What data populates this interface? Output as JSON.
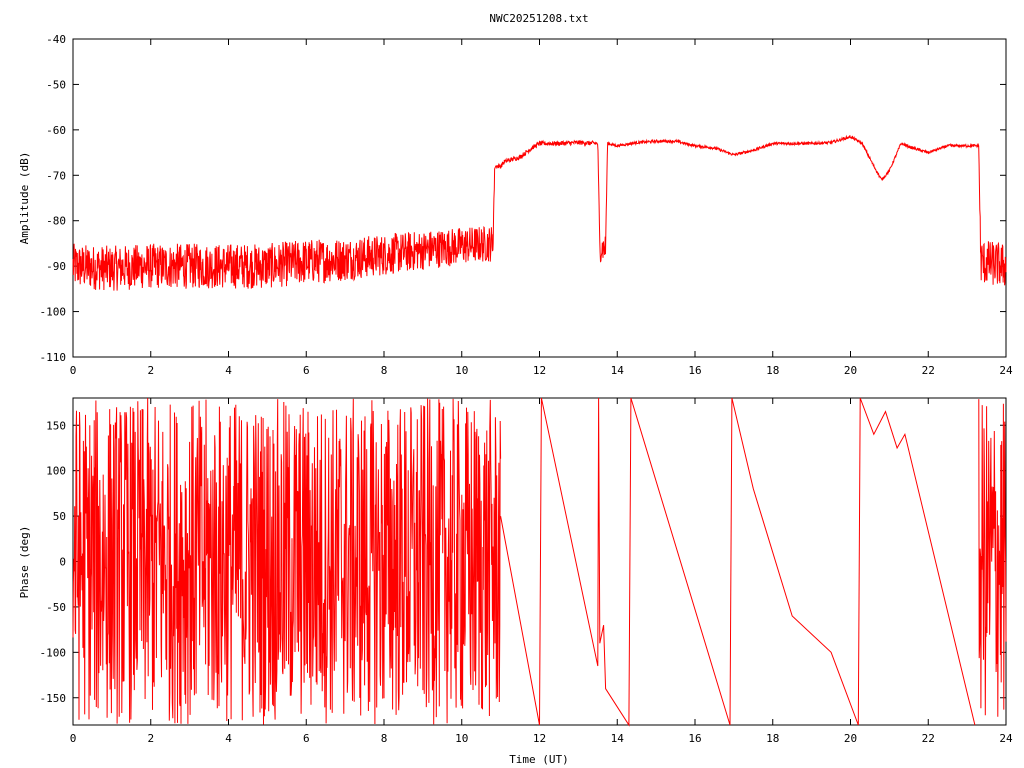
{
  "chart_data": [
    {
      "type": "line",
      "title": "NWC20251208.txt",
      "xlabel": "",
      "ylabel": "Amplitude (dB)",
      "xlim": [
        0,
        24
      ],
      "ylim": [
        -110,
        -40
      ],
      "xticks": [
        "0",
        "2",
        "4",
        "6",
        "8",
        "10",
        "12",
        "14",
        "16",
        "18",
        "20",
        "22",
        "24"
      ],
      "yticks": [
        "-40",
        "-50",
        "-60",
        "-70",
        "-80",
        "-90",
        "-100",
        "-110"
      ],
      "grid": false,
      "color": "#ff0000",
      "series": [
        {
          "points": [
            [
              0.0,
              -90
            ],
            [
              1.0,
              -90.5
            ],
            [
              2.0,
              -90
            ],
            [
              3.0,
              -90
            ],
            [
              4.0,
              -90
            ],
            [
              5.0,
              -90
            ],
            [
              6.0,
              -89
            ],
            [
              7.0,
              -88.5
            ],
            [
              8.0,
              -87.5
            ],
            [
              9.0,
              -86.5
            ],
            [
              10.0,
              -85.5
            ],
            [
              10.8,
              -85
            ],
            [
              10.85,
              -68
            ],
            [
              11.0,
              -68
            ],
            [
              11.1,
              -67
            ],
            [
              11.5,
              -66
            ],
            [
              11.8,
              -64
            ],
            [
              12.0,
              -63
            ],
            [
              12.5,
              -63
            ],
            [
              13.0,
              -62.8
            ],
            [
              13.5,
              -63
            ],
            [
              13.55,
              -86
            ],
            [
              13.7,
              -86
            ],
            [
              13.75,
              -63
            ],
            [
              14.0,
              -63.5
            ],
            [
              14.5,
              -62.8
            ],
            [
              15.0,
              -62.5
            ],
            [
              15.5,
              -62.5
            ],
            [
              16.0,
              -63.5
            ],
            [
              16.5,
              -64
            ],
            [
              17.0,
              -65.5
            ],
            [
              17.5,
              -64.5
            ],
            [
              18.0,
              -63
            ],
            [
              19.0,
              -63
            ],
            [
              19.5,
              -62.8
            ],
            [
              20.0,
              -61.5
            ],
            [
              20.3,
              -63
            ],
            [
              20.6,
              -68
            ],
            [
              20.8,
              -71
            ],
            [
              21.0,
              -69
            ],
            [
              21.3,
              -63
            ],
            [
              21.6,
              -64
            ],
            [
              22.0,
              -65
            ],
            [
              22.5,
              -63.5
            ],
            [
              23.0,
              -63.5
            ],
            [
              23.3,
              -63.5
            ],
            [
              23.35,
              -89
            ],
            [
              24.0,
              -90
            ]
          ],
          "noise_band_db": [
            [
              0.0,
              5
            ],
            [
              6.0,
              5
            ],
            [
              10.8,
              4
            ],
            [
              10.85,
              0.5
            ],
            [
              13.5,
              0.5
            ],
            [
              13.55,
              3
            ],
            [
              13.7,
              3
            ],
            [
              13.75,
              0.3
            ],
            [
              23.3,
              0.3
            ],
            [
              23.35,
              5
            ],
            [
              24.0,
              5
            ]
          ]
        }
      ]
    },
    {
      "type": "line",
      "title": "",
      "xlabel": "Time (UT)",
      "ylabel": "Phase (deg)",
      "xlim": [
        0,
        24
      ],
      "ylim": [
        -180,
        180
      ],
      "xticks": [
        "0",
        "2",
        "4",
        "6",
        "8",
        "10",
        "12",
        "14",
        "16",
        "18",
        "20",
        "22",
        "24"
      ],
      "yticks": [
        "150",
        "100",
        "50",
        "0",
        "-50",
        "-100",
        "-150"
      ],
      "grid": false,
      "color": "#ff0000",
      "series": [
        {
          "noisy_segments": [
            [
              0.0,
              11.0
            ],
            [
              23.3,
              24.0
            ]
          ],
          "points": [
            [
              11.0,
              50
            ],
            [
              12.0,
              -180
            ],
            [
              12.05,
              180
            ],
            [
              13.5,
              -115
            ],
            [
              13.52,
              180
            ],
            [
              13.55,
              -90
            ],
            [
              13.65,
              -70
            ],
            [
              13.7,
              -140
            ],
            [
              14.3,
              -180
            ],
            [
              14.35,
              180
            ],
            [
              16.9,
              -180
            ],
            [
              16.95,
              180
            ],
            [
              17.5,
              80
            ],
            [
              18.5,
              -60
            ],
            [
              19.5,
              -100
            ],
            [
              20.2,
              -180
            ],
            [
              20.25,
              180
            ],
            [
              20.6,
              140
            ],
            [
              20.9,
              165
            ],
            [
              21.2,
              125
            ],
            [
              21.4,
              140
            ],
            [
              23.2,
              -180
            ]
          ]
        }
      ]
    }
  ]
}
